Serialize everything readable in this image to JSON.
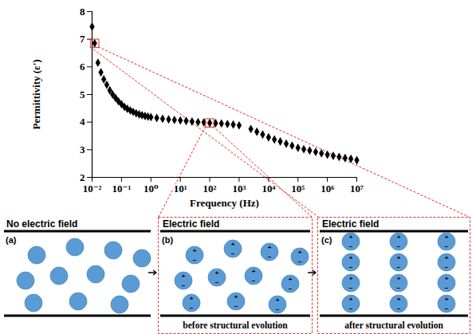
{
  "chart_data": {
    "type": "scatter",
    "x_label": "Frequency (Hz)",
    "y_label": "Permittivity (ε')",
    "x": [
      0.01,
      0.0122,
      0.0158,
      0.02,
      0.025,
      0.0316,
      0.04,
      0.05,
      0.063,
      0.079,
      0.1,
      0.126,
      0.158,
      0.2,
      0.25,
      0.316,
      0.4,
      0.5,
      0.63,
      0.79,
      1,
      1.58,
      2.5,
      4,
      6.3,
      10,
      15.8,
      25,
      40,
      63,
      100,
      158,
      250,
      400,
      630,
      1000,
      2500,
      4000,
      6300,
      10000,
      15800,
      25000,
      40000,
      63000,
      100000,
      158000,
      250000,
      400000,
      630000,
      1000000,
      1580000,
      2500000,
      4000000,
      6300000,
      10000000
    ],
    "values": [
      7.45,
      6.85,
      6.15,
      5.8,
      5.55,
      5.35,
      5.15,
      5.0,
      4.87,
      4.75,
      4.65,
      4.55,
      4.48,
      4.42,
      4.37,
      4.32,
      4.28,
      4.25,
      4.22,
      4.2,
      4.18,
      4.15,
      4.12,
      4.1,
      4.08,
      4.06,
      4.04,
      4.02,
      4.0,
      3.99,
      3.97,
      3.96,
      3.95,
      3.93,
      3.91,
      3.88,
      3.75,
      3.65,
      3.55,
      3.45,
      3.37,
      3.3,
      3.22,
      3.15,
      3.07,
      3.02,
      2.97,
      2.92,
      2.87,
      2.82,
      2.78,
      2.74,
      2.7,
      2.67,
      2.62
    ],
    "color": "#000000",
    "marker": "diamond",
    "log": "x",
    "grid": false,
    "xlim": [
      0.01,
      10000000
    ],
    "ylim": [
      2,
      8
    ],
    "xticks": [
      {
        "value": 0.01,
        "label": "10⁻²"
      },
      {
        "value": 0.1,
        "label": "10⁻¹"
      },
      {
        "value": 1,
        "label": "10⁰"
      },
      {
        "value": 10,
        "label": "10¹"
      },
      {
        "value": 100,
        "label": "10²"
      },
      {
        "value": 1000,
        "label": "10³"
      },
      {
        "value": 10000,
        "label": "10⁴"
      },
      {
        "value": 100000,
        "label": "10⁵"
      },
      {
        "value": 1000000,
        "label": "10⁶"
      },
      {
        "value": 10000000,
        "label": "10⁷"
      }
    ],
    "yticks": [
      2,
      3,
      4,
      5,
      6,
      7,
      8
    ],
    "callouts": [
      {
        "x": 0.0122,
        "y": 6.85,
        "panel": "(c)"
      },
      {
        "x": 100,
        "y": 3.97,
        "panel": "(b)"
      }
    ]
  },
  "diagram": {
    "charge_signs": {
      "positive": "+",
      "negative": "−"
    },
    "panels": [
      {
        "label": "(a)",
        "title": "No electric field"
      },
      {
        "label": "(b)",
        "title": "Electric field",
        "caption": "before structural evolution"
      },
      {
        "label": "(c)",
        "title": "Electric field",
        "caption": "after structural evolution"
      }
    ]
  }
}
